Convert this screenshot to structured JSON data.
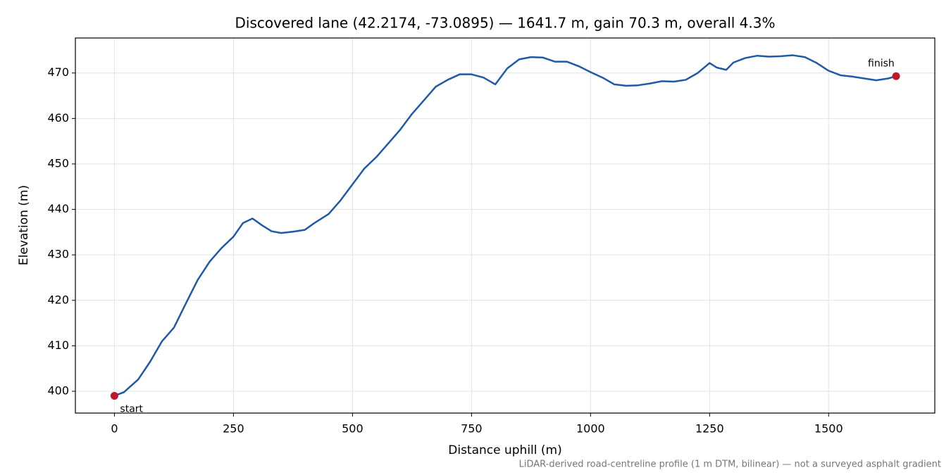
{
  "chart_data": {
    "type": "line",
    "title": "Discovered lane (42.2174, -73.0895) — 1641.7 m, gain 70.3 m, overall 4.3%",
    "x_label": "Distance uphill (m)",
    "y_label": "Elevation (m)",
    "footnote": "LiDAR-derived road-centreline profile (1 m DTM, bilinear) — not a surveyed asphalt gradient",
    "x": [
      0,
      20,
      50,
      75,
      100,
      125,
      150,
      175,
      200,
      225,
      250,
      270,
      290,
      310,
      330,
      350,
      375,
      400,
      420,
      450,
      475,
      500,
      525,
      550,
      575,
      600,
      625,
      650,
      675,
      700,
      725,
      750,
      775,
      800,
      825,
      850,
      875,
      900,
      925,
      950,
      975,
      1000,
      1025,
      1050,
      1075,
      1100,
      1125,
      1150,
      1175,
      1200,
      1225,
      1250,
      1265,
      1285,
      1300,
      1325,
      1350,
      1375,
      1400,
      1425,
      1450,
      1475,
      1500,
      1525,
      1550,
      1575,
      1600,
      1625,
      1641.7
    ],
    "series": [
      {
        "color": "#1f5aa6",
        "values": [
          399.0,
          399.8,
          402.6,
          406.5,
          411.0,
          414.0,
          419.3,
          424.5,
          428.5,
          431.5,
          434.0,
          437.0,
          438.0,
          436.5,
          435.2,
          434.8,
          435.1,
          435.5,
          437.0,
          439.0,
          442.0,
          445.5,
          449.0,
          451.5,
          454.5,
          457.5,
          461.0,
          464.0,
          467.0,
          468.5,
          469.7,
          469.7,
          469.0,
          467.5,
          471.0,
          473.0,
          473.5,
          473.4,
          472.5,
          472.5,
          471.5,
          470.2,
          469.0,
          467.5,
          467.2,
          467.3,
          467.7,
          468.2,
          468.1,
          468.5,
          470.0,
          472.2,
          471.2,
          470.7,
          472.3,
          473.3,
          473.8,
          473.6,
          473.7,
          473.9,
          473.5,
          472.2,
          470.5,
          469.5,
          469.2,
          468.8,
          468.4,
          468.8,
          469.3
        ]
      }
    ],
    "markers": [
      {
        "label": "start",
        "x": 0,
        "y": 399.0,
        "color": "#c0182a"
      },
      {
        "label": "finish",
        "x": 1641.7,
        "y": 469.3,
        "color": "#c0182a"
      }
    ],
    "xlim": [
      -82,
      1723
    ],
    "ylim": [
      395.2,
      477.7
    ],
    "xticks": [
      0,
      250,
      500,
      750,
      1000,
      1250,
      1500
    ],
    "yticks": [
      400,
      410,
      420,
      430,
      440,
      450,
      460,
      470
    ],
    "grid": true
  }
}
